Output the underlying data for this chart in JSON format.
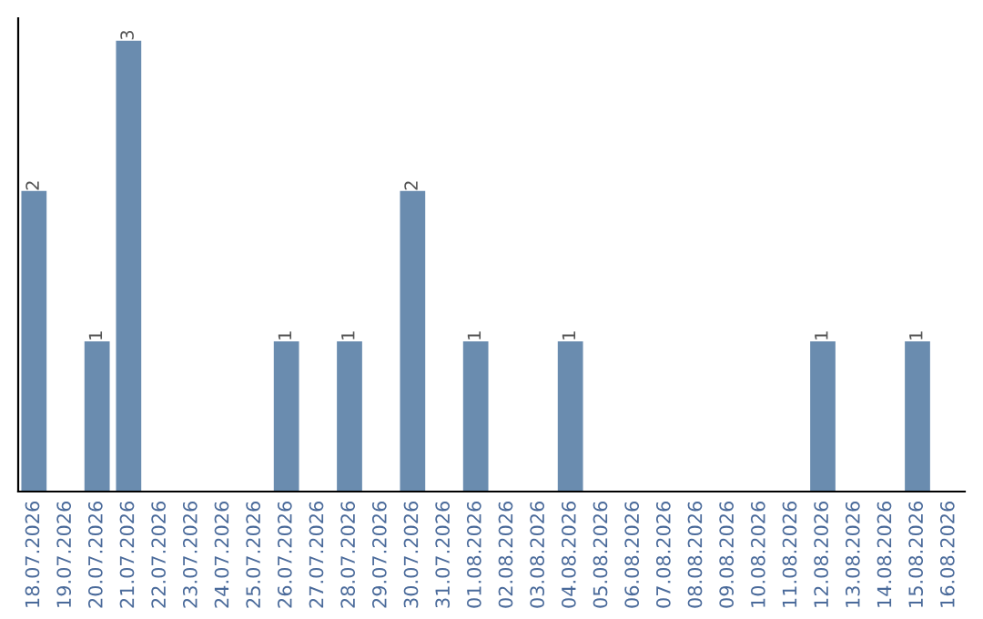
{
  "chart_data": {
    "type": "bar",
    "categories": [
      "18.07.2026",
      "19.07.2026",
      "20.07.2026",
      "21.07.2026",
      "22.07.2026",
      "23.07.2026",
      "24.07.2026",
      "25.07.2026",
      "26.07.2026",
      "27.07.2026",
      "28.07.2026",
      "29.07.2026",
      "30.07.2026",
      "31.07.2026",
      "01.08.2026",
      "02.08.2026",
      "03.08.2026",
      "04.08.2026",
      "05.08.2026",
      "06.08.2026",
      "07.08.2026",
      "08.08.2026",
      "09.08.2026",
      "10.08.2026",
      "11.08.2026",
      "12.08.2026",
      "13.08.2026",
      "14.08.2026",
      "15.08.2026",
      "16.08.2026"
    ],
    "values": [
      2,
      0,
      1,
      3,
      0,
      0,
      0,
      0,
      1,
      0,
      1,
      0,
      2,
      0,
      1,
      0,
      0,
      1,
      0,
      0,
      0,
      0,
      0,
      0,
      0,
      1,
      0,
      0,
      1,
      0
    ],
    "value_labels": [
      "2",
      null,
      "1",
      "3",
      null,
      null,
      null,
      null,
      "1",
      null,
      "1",
      null,
      "2",
      null,
      "1",
      null,
      null,
      "1",
      null,
      null,
      null,
      null,
      null,
      null,
      null,
      "1",
      null,
      null,
      "1",
      null
    ],
    "color": "#6a8caf",
    "grid": false,
    "legend": false,
    "tick_labels": "x"
  }
}
